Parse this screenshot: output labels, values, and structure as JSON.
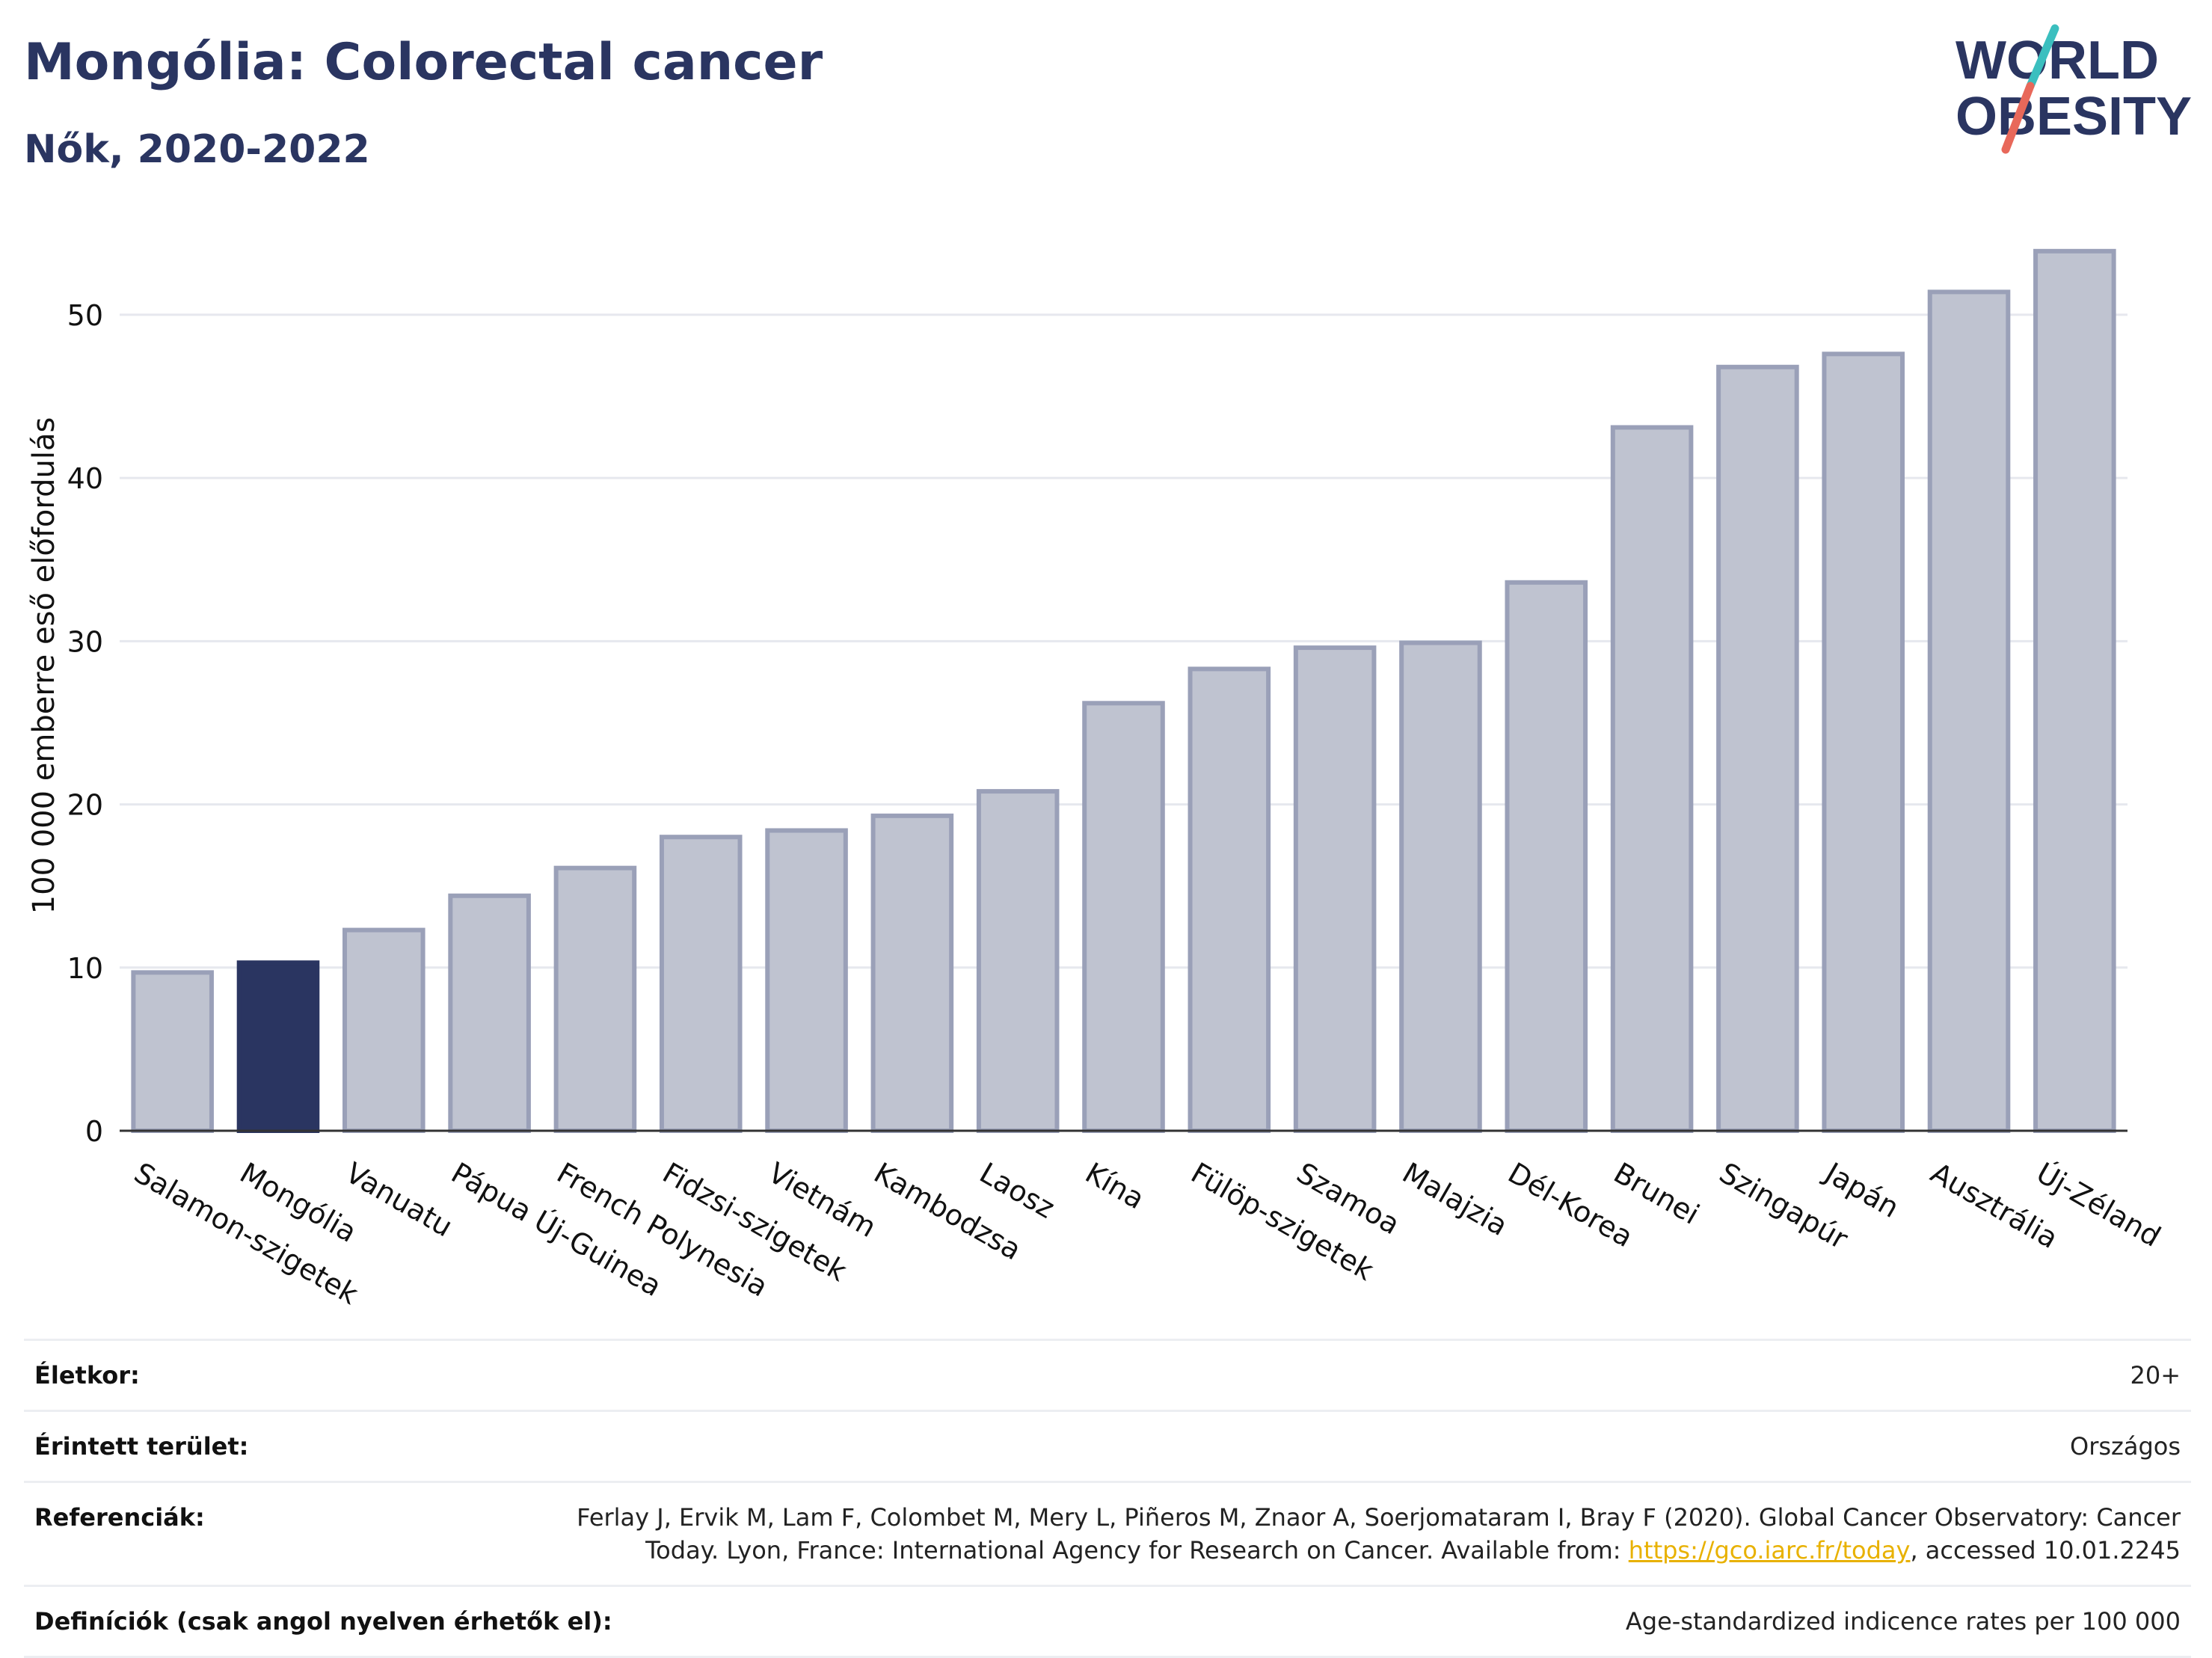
{
  "header": {
    "title": "Mongólia: Colorectal cancer",
    "subtitle": "Nők, 2020-2022"
  },
  "logo": {
    "text_line1": "WORLD",
    "text_line2": "OBESITY",
    "colors": {
      "text": "#2a3561",
      "slash_teal": "#3bbfbf",
      "slash_coral": "#e8685a"
    }
  },
  "colors": {
    "bar": "#bfc3d0",
    "bar_stroke": "#9aa0b8",
    "highlight": "#2a3561",
    "grid": "#e6e8ee",
    "axis": "#333333"
  },
  "chart_data": {
    "type": "bar",
    "ylabel": "100 000 emberre eső előfordulás",
    "ylim": [
      0,
      56
    ],
    "yticks": [
      0,
      10,
      20,
      30,
      40,
      50
    ],
    "grid": true,
    "highlight": "Mongólia",
    "categories": [
      "Salamon-szigetek",
      "Mongólia",
      "Vanuatu",
      "Pápua Új-Guinea",
      "French Polynesia",
      "Fidzsi-szigetek",
      "Vietnám",
      "Kambodzsa",
      "Laosz",
      "Kína",
      "Fülöp-szigetek",
      "Szamoa",
      "Malajzia",
      "Dél-Korea",
      "Brunei",
      "Szingapúr",
      "Japán",
      "Ausztrália",
      "Új-Zéland"
    ],
    "values": [
      9.7,
      10.3,
      12.3,
      14.4,
      16.1,
      18.0,
      18.4,
      19.3,
      20.8,
      26.2,
      28.3,
      29.6,
      29.9,
      33.6,
      43.1,
      46.8,
      47.6,
      51.4,
      53.9
    ]
  },
  "meta": {
    "age_label": "Életkor:",
    "age_value": "20+",
    "area_label": "Érintett terület:",
    "area_value": "Országos",
    "ref_label": "Referenciák:",
    "ref_text_before": "Ferlay J, Ervik M, Lam F, Colombet M, Mery L, Piñeros M, Znaor A, Soerjomataram I, Bray F (2020). Global Cancer Observatory: Cancer Today. Lyon, France: International Agency for Research on Cancer. Available from: ",
    "ref_link": "https://gco.iarc.fr/today",
    "ref_text_after": ", accessed 10.01.2245",
    "def_label": "Definíciók (csak angol nyelven érhetők el):",
    "def_value": "Age-standardized indicence rates per 100 000"
  }
}
